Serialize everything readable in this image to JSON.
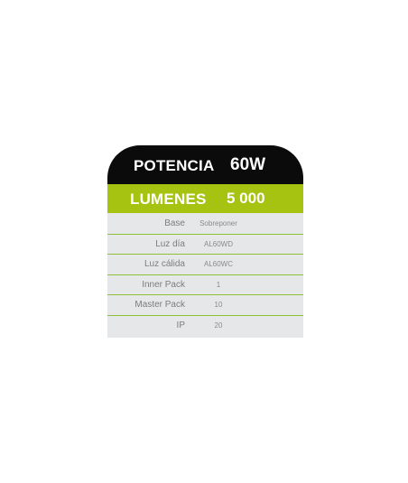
{
  "spec_card": {
    "power": {
      "label": "POTENCIA",
      "value": "60W"
    },
    "lumens": {
      "label": "LUMENES",
      "value": "5 000"
    },
    "rows": [
      {
        "label": "Base",
        "value": "Sobreponer"
      },
      {
        "label": "Luz día",
        "value": "AL60WD"
      },
      {
        "label": "Luz cálida",
        "value": "AL60WC"
      },
      {
        "label": "Inner Pack",
        "value": "1"
      },
      {
        "label": "Master Pack",
        "value": "10"
      },
      {
        "label": "IP",
        "value": "20"
      }
    ]
  },
  "colors": {
    "header_black": "#0b0b0b",
    "header_green": "#a6c312",
    "table_bg": "#e6e7e9",
    "divider_green": "#8cbf3a"
  }
}
